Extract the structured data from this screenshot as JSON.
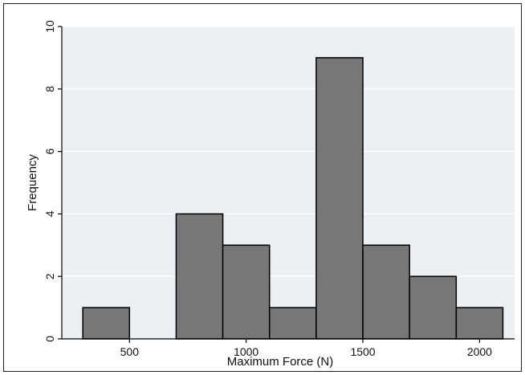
{
  "chart_data": {
    "type": "bar",
    "title": "",
    "xlabel": "Maximum Force (N)",
    "ylabel": "Frequency",
    "xlim": [
      210,
      2150
    ],
    "ylim": [
      0,
      10
    ],
    "bin_width": 200,
    "bins": [
      {
        "start": 300,
        "end": 500,
        "value": 1
      },
      {
        "start": 500,
        "end": 700,
        "value": 0
      },
      {
        "start": 700,
        "end": 900,
        "value": 4
      },
      {
        "start": 900,
        "end": 1100,
        "value": 3
      },
      {
        "start": 1100,
        "end": 1300,
        "value": 1
      },
      {
        "start": 1300,
        "end": 1500,
        "value": 9
      },
      {
        "start": 1500,
        "end": 1700,
        "value": 3
      },
      {
        "start": 1700,
        "end": 1900,
        "value": 2
      },
      {
        "start": 1900,
        "end": 2100,
        "value": 1
      }
    ],
    "x_ticks": [
      500,
      1000,
      1500,
      2000
    ],
    "y_ticks": [
      0,
      2,
      4,
      6,
      8,
      10
    ],
    "grid": true,
    "colors": {
      "plot_background": "#eaf0f4",
      "bar_fill": "#777777",
      "bar_stroke": "#000000",
      "grid": "#ffffff"
    }
  }
}
